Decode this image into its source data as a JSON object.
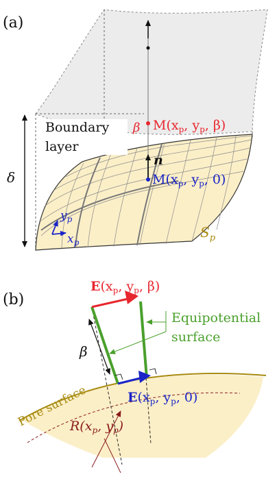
{
  "panel_a": {
    "label": "(a)",
    "boundary_layer_line1": "Boundary",
    "boundary_layer_line2": "layer",
    "delta": "δ",
    "beta": "β",
    "point_beta": "M(x",
    "point_beta_sub": "p",
    "point_beta_mid": ", y",
    "point_beta_end": ", β)",
    "point_zero": "M(x",
    "point_zero_sub": "p",
    "point_zero_mid": ", y",
    "point_zero_end": ", 0)",
    "normal": "n",
    "xp": "x",
    "yp": "y",
    "sub_p": "p",
    "surface": "S",
    "surface_sub": "p"
  },
  "panel_b": {
    "label": "(b)",
    "field_top": "E",
    "field_top_args": "(x",
    "field_top_mid": ", y",
    "field_top_end": ", β)",
    "field_bottom": "E",
    "field_bottom_args": "(x",
    "field_bottom_mid": ", y",
    "field_bottom_end": ", 0)",
    "equipotential_line1": "Equipotential",
    "equipotential_line2": "surface",
    "beta": "β",
    "pore_surface": "Pore surface",
    "radius": "R(x",
    "radius_mid": ", y",
    "radius_end": ")",
    "sub_p": "p"
  },
  "colors": {
    "red": "#e8262e",
    "blue": "#1a24c8",
    "green": "#4aa02c",
    "gold": "#a88a10",
    "dark_red": "#8a1c1c",
    "surface_fill": "#fbefc8",
    "box_fill": "#ececec"
  }
}
